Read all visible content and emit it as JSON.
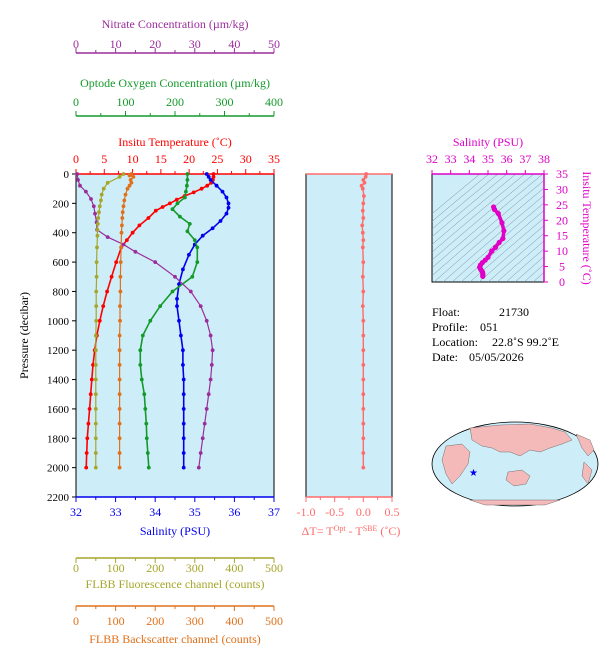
{
  "meta": {
    "float_label": "Float:",
    "float_value": "21730",
    "profile_label": "Profile:",
    "profile_value": "051",
    "location_label": "Location:",
    "location_value": "22.8˚S  99.2˚E",
    "date_label": "Date:",
    "date_value": "05/05/2026"
  },
  "colors": {
    "nitrate": "#9b2d9b",
    "oxygen": "#139a2a",
    "temperature": "#ff0000",
    "salinity": "#0000ee",
    "fluorescence": "#a6a62a",
    "backscatter": "#e0701a",
    "dT": "#ff6b6b",
    "ts": "#e000c8",
    "panel_bg": "#cdeef8"
  },
  "chart_data": [
    {
      "type": "line",
      "panel": "main-profile",
      "ylabel": "Pressure (decibar)",
      "ylim": [
        2200,
        0
      ],
      "yticks": [
        "0",
        "200",
        "400",
        "600",
        "800",
        "1000",
        "1200",
        "1400",
        "1600",
        "1800",
        "2000",
        "2200"
      ],
      "axes": {
        "nitrate": {
          "title": "Nitrate Concentration (µm/kg)",
          "range": [
            0,
            50
          ],
          "ticks": [
            "0",
            "10",
            "20",
            "30",
            "40",
            "50"
          ]
        },
        "oxygen": {
          "title": "Optode Oxygen Concentration (µm/kg)",
          "range": [
            0,
            400
          ],
          "ticks": [
            "0",
            "100",
            "200",
            "300",
            "400"
          ]
        },
        "temperature": {
          "title": "Insitu Temperature (˚C)",
          "range": [
            0,
            35
          ],
          "ticks": [
            "0",
            "5",
            "10",
            "15",
            "20",
            "25",
            "30",
            "35"
          ]
        },
        "salinity": {
          "title": "Salinity (PSU)",
          "range": [
            32,
            37
          ],
          "ticks": [
            "32",
            "33",
            "34",
            "35",
            "36",
            "37"
          ]
        },
        "fluorescence": {
          "title": "FLBB Fluorescence channel (counts)",
          "range": [
            0,
            500
          ],
          "ticks": [
            "0",
            "100",
            "200",
            "300",
            "400",
            "500"
          ]
        },
        "backscatter": {
          "title": "FLBB Backscatter channel (counts)",
          "range": [
            0,
            500
          ],
          "ticks": [
            "0",
            "100",
            "200",
            "300",
            "400",
            "500"
          ]
        }
      },
      "series": [
        {
          "key": "temperature",
          "name": "Insitu Temperature",
          "points": [
            [
              24.3,
              0
            ],
            [
              24.3,
              20
            ],
            [
              24.2,
              40
            ],
            [
              23.9,
              60
            ],
            [
              23.2,
              80
            ],
            [
              22.2,
              100
            ],
            [
              20.8,
              125
            ],
            [
              19.2,
              150
            ],
            [
              17.8,
              175
            ],
            [
              16.6,
              200
            ],
            [
              15.3,
              225
            ],
            [
              14.1,
              250
            ],
            [
              12.8,
              300
            ],
            [
              11.2,
              350
            ],
            [
              10.0,
              400
            ],
            [
              9.0,
              450
            ],
            [
              8.0,
              500
            ],
            [
              7.1,
              600
            ],
            [
              6.3,
              700
            ],
            [
              5.5,
              800
            ],
            [
              4.8,
              900
            ],
            [
              4.2,
              1000
            ],
            [
              3.7,
              1100
            ],
            [
              3.3,
              1200
            ],
            [
              3.0,
              1300
            ],
            [
              2.8,
              1400
            ],
            [
              2.6,
              1500
            ],
            [
              2.4,
              1600
            ],
            [
              2.2,
              1700
            ],
            [
              2.0,
              1800
            ],
            [
              1.9,
              1900
            ],
            [
              1.8,
              2000
            ]
          ]
        },
        {
          "key": "salinity",
          "name": "Salinity",
          "points": [
            [
              35.3,
              0
            ],
            [
              35.35,
              20
            ],
            [
              35.4,
              40
            ],
            [
              35.55,
              80
            ],
            [
              35.7,
              120
            ],
            [
              35.8,
              160
            ],
            [
              35.85,
              200
            ],
            [
              35.85,
              230
            ],
            [
              35.8,
              270
            ],
            [
              35.65,
              320
            ],
            [
              35.45,
              370
            ],
            [
              35.2,
              420
            ],
            [
              35.0,
              480
            ],
            [
              34.85,
              550
            ],
            [
              34.7,
              650
            ],
            [
              34.6,
              750
            ],
            [
              34.55,
              850
            ],
            [
              34.55,
              900
            ],
            [
              34.6,
              1000
            ],
            [
              34.65,
              1100
            ],
            [
              34.7,
              1200
            ],
            [
              34.7,
              1300
            ],
            [
              34.72,
              1400
            ],
            [
              34.72,
              1500
            ],
            [
              34.72,
              1600
            ],
            [
              34.72,
              1700
            ],
            [
              34.72,
              1800
            ],
            [
              34.72,
              1900
            ],
            [
              34.72,
              2000
            ]
          ]
        },
        {
          "key": "oxygen",
          "name": "Optode Oxygen",
          "points": [
            [
              225,
              0
            ],
            [
              225,
              40
            ],
            [
              224,
              80
            ],
            [
              222,
              120
            ],
            [
              220,
              160
            ],
            [
              205,
              200
            ],
            [
              195,
              240
            ],
            [
              210,
              290
            ],
            [
              230,
              340
            ],
            [
              225,
              390
            ],
            [
              240,
              450
            ],
            [
              245,
              500
            ],
            [
              245,
              600
            ],
            [
              235,
              700
            ],
            [
              195,
              800
            ],
            [
              170,
              900
            ],
            [
              150,
              1000
            ],
            [
              135,
              1100
            ],
            [
              130,
              1200
            ],
            [
              130,
              1300
            ],
            [
              133,
              1400
            ],
            [
              138,
              1500
            ],
            [
              140,
              1600
            ],
            [
              142,
              1700
            ],
            [
              143,
              1800
            ],
            [
              145,
              1900
            ],
            [
              147,
              2000
            ]
          ]
        },
        {
          "key": "nitrate",
          "name": "Nitrate",
          "points": [
            [
              0.3,
              0
            ],
            [
              0.5,
              40
            ],
            [
              1.0,
              80
            ],
            [
              2.5,
              120
            ],
            [
              3.8,
              170
            ],
            [
              4.5,
              220
            ],
            [
              4.8,
              270
            ],
            [
              5.2,
              330
            ],
            [
              5.3,
              380
            ],
            [
              8.0,
              430
            ],
            [
              12.0,
              480
            ],
            [
              15.0,
              530
            ],
            [
              20.0,
              600
            ],
            [
              25.0,
              700
            ],
            [
              29.0,
              800
            ],
            [
              31.5,
              900
            ],
            [
              33.0,
              1000
            ],
            [
              34.0,
              1100
            ],
            [
              34.5,
              1200
            ],
            [
              34.3,
              1300
            ],
            [
              34.0,
              1400
            ],
            [
              33.5,
              1500
            ],
            [
              33.0,
              1600
            ],
            [
              32.5,
              1700
            ],
            [
              32.0,
              1800
            ],
            [
              31.5,
              1900
            ],
            [
              31.0,
              2000
            ]
          ]
        },
        {
          "key": "fluorescence",
          "name": "FLBB Fluorescence",
          "points": [
            [
              120,
              0
            ],
            [
              110,
              20
            ],
            [
              80,
              60
            ],
            [
              70,
              100
            ],
            [
              65,
              140
            ],
            [
              63,
              180
            ],
            [
              60,
              220
            ],
            [
              58,
              260
            ],
            [
              56,
              300
            ],
            [
              55,
              340
            ],
            [
              54,
              380
            ],
            [
              54,
              420
            ],
            [
              53,
              500
            ],
            [
              52,
              600
            ],
            [
              52,
              700
            ],
            [
              51,
              800
            ],
            [
              51,
              900
            ],
            [
              51,
              1000
            ],
            [
              50,
              1100
            ],
            [
              50,
              1200
            ],
            [
              50,
              1300
            ],
            [
              50,
              1400
            ],
            [
              50,
              1500
            ],
            [
              50,
              1600
            ],
            [
              50,
              1700
            ],
            [
              50,
              1800
            ],
            [
              50,
              1900
            ],
            [
              50,
              2000
            ]
          ]
        },
        {
          "key": "backscatter",
          "name": "FLBB Backscatter",
          "points": [
            [
              140,
              0
            ],
            [
              135,
              10
            ],
            [
              145,
              20
            ],
            [
              138,
              40
            ],
            [
              140,
              60
            ],
            [
              135,
              80
            ],
            [
              130,
              100
            ],
            [
              125,
              140
            ],
            [
              122,
              180
            ],
            [
              120,
              220
            ],
            [
              118,
              260
            ],
            [
              117,
              300
            ],
            [
              116,
              350
            ],
            [
              115,
              400
            ],
            [
              114,
              500
            ],
            [
              113,
              600
            ],
            [
              112,
              700
            ],
            [
              112,
              800
            ],
            [
              111,
              900
            ],
            [
              111,
              1000
            ],
            [
              110,
              1100
            ],
            [
              110,
              1200
            ],
            [
              110,
              1300
            ],
            [
              110,
              1400
            ],
            [
              110,
              1500
            ],
            [
              110,
              1600
            ],
            [
              110,
              1700
            ],
            [
              110,
              1800
            ],
            [
              110,
              1900
            ],
            [
              110,
              2000
            ]
          ]
        }
      ]
    },
    {
      "type": "line",
      "panel": "delta-t",
      "xlabel": "ΔT= T^Opt - T^SBE (˚C)",
      "xlim": [
        -1.0,
        0.5
      ],
      "xticks": [
        "-1.0",
        "-0.5",
        "0.0",
        "0.5"
      ],
      "ylim": [
        2200,
        0
      ],
      "series": [
        {
          "key": "dT",
          "name": "ΔT",
          "points": [
            [
              0.05,
              0
            ],
            [
              0.04,
              20
            ],
            [
              0.0,
              40
            ],
            [
              0.02,
              60
            ],
            [
              -0.03,
              80
            ],
            [
              -0.01,
              100
            ],
            [
              0.01,
              150
            ],
            [
              0.0,
              200
            ],
            [
              -0.01,
              250
            ],
            [
              0.0,
              300
            ],
            [
              -0.02,
              350
            ],
            [
              -0.01,
              400
            ],
            [
              0.0,
              450
            ],
            [
              -0.01,
              500
            ],
            [
              0.0,
              600
            ],
            [
              -0.01,
              700
            ],
            [
              0.0,
              800
            ],
            [
              -0.01,
              900
            ],
            [
              0.0,
              1000
            ],
            [
              0.0,
              1100
            ],
            [
              0.0,
              1200
            ],
            [
              0.0,
              1300
            ],
            [
              0.0,
              1400
            ],
            [
              0.0,
              1500
            ],
            [
              0.0,
              1600
            ],
            [
              0.0,
              1700
            ],
            [
              0.0,
              1800
            ],
            [
              0.0,
              1900
            ],
            [
              0.0,
              2000
            ]
          ]
        }
      ]
    },
    {
      "type": "scatter",
      "panel": "ts-diagram",
      "xlabel": "Salinity (PSU)",
      "ylabel": "Insitu Temperature (˚C)",
      "xlim": [
        32,
        38
      ],
      "ylim": [
        0,
        35
      ],
      "xticks": [
        "32",
        "33",
        "34",
        "35",
        "36",
        "37",
        "38"
      ],
      "yticks": [
        "0",
        "5",
        "10",
        "15",
        "20",
        "25",
        "30",
        "35"
      ],
      "series": [
        {
          "key": "ts",
          "name": "T-S",
          "points": [
            [
              35.3,
              24.3
            ],
            [
              35.35,
              23.5
            ],
            [
              35.55,
              22.2
            ],
            [
              35.75,
              19.2
            ],
            [
              35.85,
              16.6
            ],
            [
              35.8,
              14.1
            ],
            [
              35.6,
              12.8
            ],
            [
              35.4,
              11.2
            ],
            [
              35.2,
              10.0
            ],
            [
              35.0,
              8.0
            ],
            [
              34.85,
              7.1
            ],
            [
              34.7,
              6.3
            ],
            [
              34.6,
              5.5
            ],
            [
              34.55,
              4.8
            ],
            [
              34.6,
              4.2
            ],
            [
              34.65,
              3.7
            ],
            [
              34.7,
              3.3
            ],
            [
              34.72,
              2.8
            ],
            [
              34.72,
              2.4
            ],
            [
              34.72,
              2.0
            ],
            [
              34.72,
              1.8
            ]
          ]
        }
      ]
    }
  ]
}
